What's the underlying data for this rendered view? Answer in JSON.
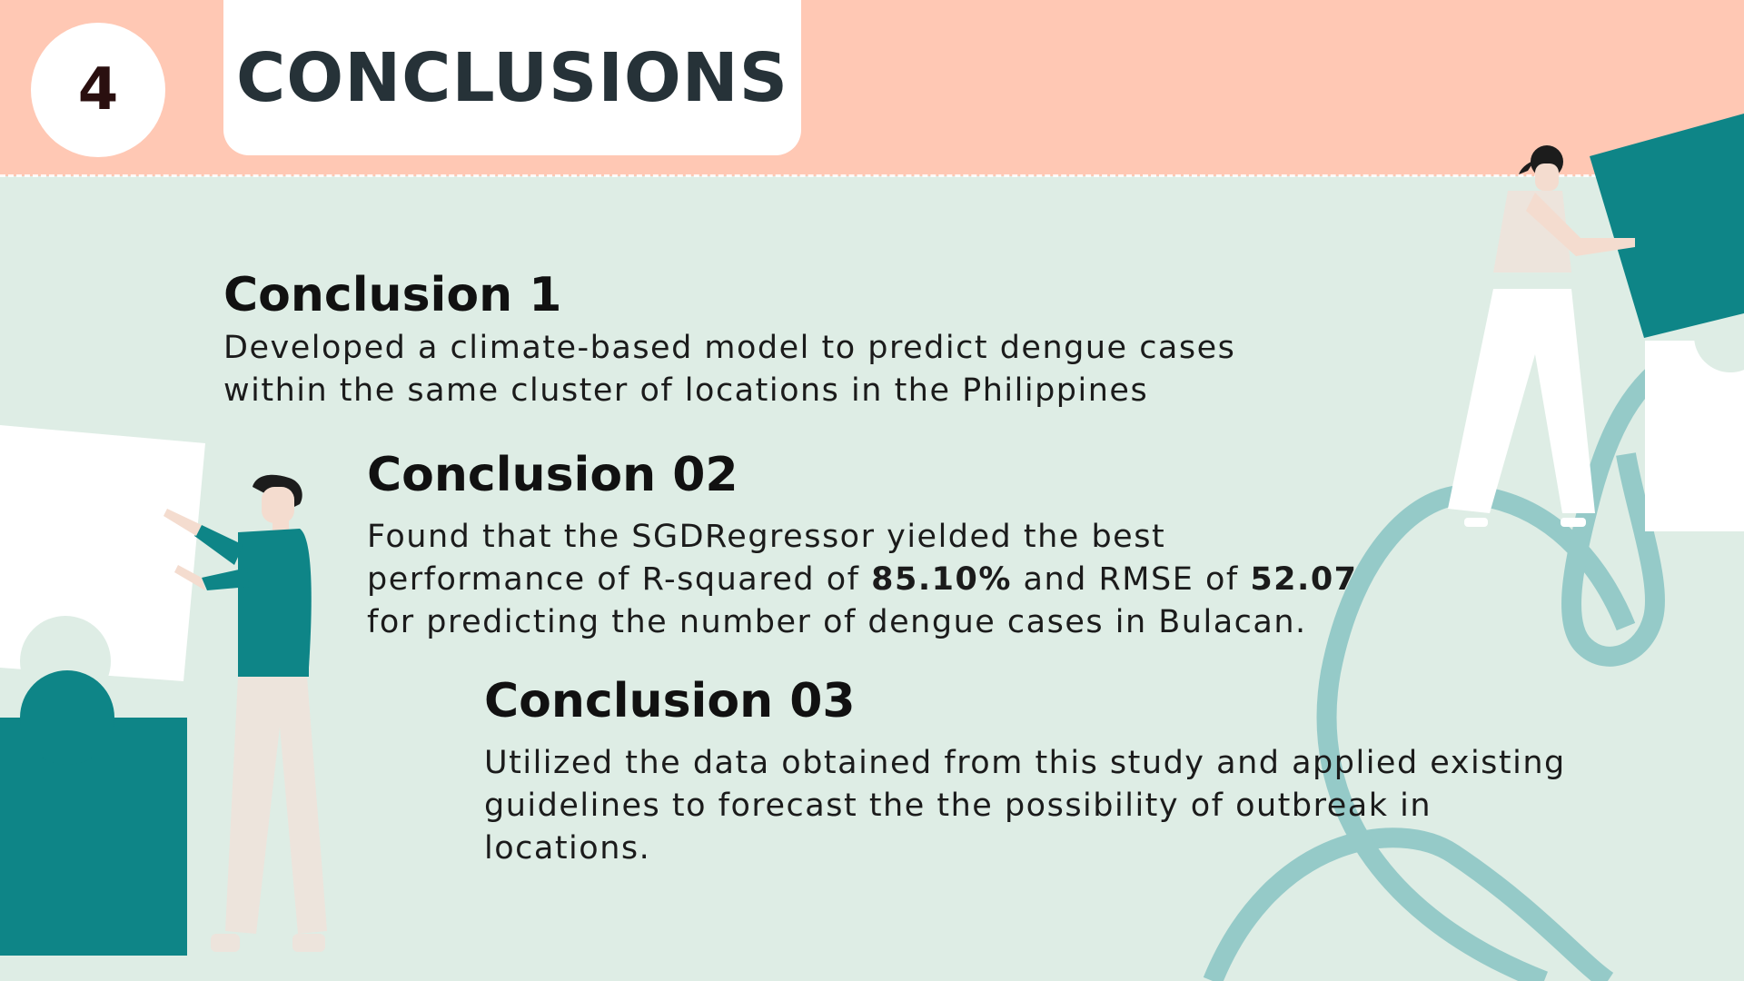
{
  "header": {
    "section_number": "4",
    "title": "CONCLUSIONS"
  },
  "conclusions": [
    {
      "heading": "Conclusion 1",
      "text_lines": [
        "Developed a climate-based model to predict dengue cases",
        "within the same cluster of locations in the Philippines"
      ]
    },
    {
      "heading": "Conclusion 02",
      "text_line1": "Found that the SGDRegressor yielded the best",
      "text_line2_pre": "performance of R-squared of ",
      "r_squared": "85.10%",
      "text_line2_mid": " and RMSE of ",
      "rmse": "52.07",
      "text_line3": "for predicting the number of dengue cases in Bulacan."
    },
    {
      "heading": "Conclusion 03",
      "text_lines": [
        "Utilized the data obtained from this study and applied existing",
        "guidelines to forecast the the possibility of outbreak in",
        "locations."
      ]
    }
  ],
  "colors": {
    "background": "#DEEDE5",
    "header_band": "#FFC8B4",
    "teal": "#0E8587",
    "light_teal": "#95CAC8",
    "text_dark": "#263238"
  },
  "illustrations": [
    "man-pushing-puzzle-piece",
    "woman-pushing-puzzle-piece",
    "puzzle-piece",
    "loop-line-decoration"
  ]
}
